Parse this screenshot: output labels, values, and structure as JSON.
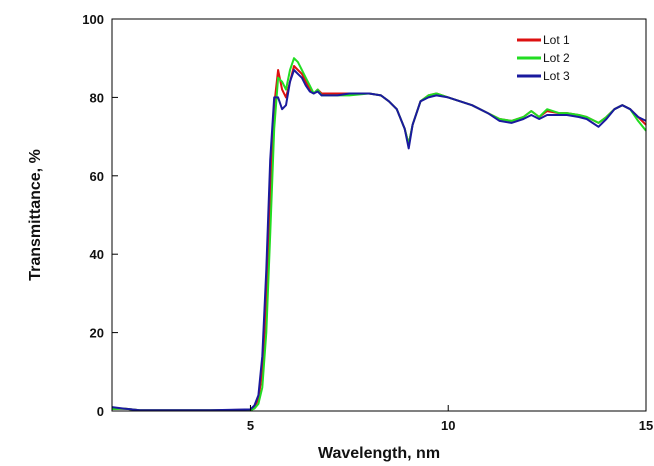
{
  "chart_data": {
    "type": "line",
    "title": "",
    "xlabel": "Wavelength, nm",
    "ylabel": "Transmittance, %",
    "xlim": [
      1.5,
      15
    ],
    "ylim": [
      0,
      100
    ],
    "x_ticks": [
      5,
      10,
      15
    ],
    "x_tick_labels": [
      "5",
      "10",
      "15"
    ],
    "y_ticks": [
      0,
      20,
      40,
      60,
      80,
      100
    ],
    "y_tick_labels": [
      "0",
      "20",
      "40",
      "60",
      "80",
      "100"
    ],
    "grid": false,
    "legend_position": "top-right",
    "series": [
      {
        "name": "Lot 1",
        "color": "#dd1111",
        "x": [
          1.5,
          1.8,
          2.2,
          3,
          4,
          5,
          5.1,
          5.2,
          5.3,
          5.4,
          5.5,
          5.6,
          5.7,
          5.8,
          5.9,
          6.0,
          6.1,
          6.2,
          6.3,
          6.4,
          6.5,
          6.6,
          6.7,
          6.8,
          7.0,
          7.2,
          7.5,
          8.0,
          8.3,
          8.5,
          8.7,
          8.9,
          9.0,
          9.1,
          9.3,
          9.5,
          9.7,
          10.0,
          10.3,
          10.6,
          11.0,
          11.3,
          11.6,
          11.9,
          12.1,
          12.3,
          12.5,
          12.8,
          13.0,
          13.3,
          13.5,
          13.8,
          14.0,
          14.2,
          14.4,
          14.6,
          14.8,
          15.0
        ],
        "y": [
          0.5,
          0.6,
          0.2,
          0.2,
          0.2,
          0.3,
          1.0,
          3.0,
          10,
          28,
          55,
          78,
          87,
          82,
          80,
          84,
          88,
          87,
          86,
          84,
          82,
          81,
          82,
          81,
          81,
          81,
          81,
          81,
          80.5,
          79,
          77,
          72,
          68,
          73,
          79,
          80.5,
          81,
          80,
          79,
          78,
          76,
          74.5,
          74,
          75,
          76.5,
          75,
          76.5,
          76,
          76,
          75.5,
          75,
          73.5,
          75,
          77,
          78,
          77,
          75,
          73
        ]
      },
      {
        "name": "Lot 2",
        "color": "#22dd22",
        "x": [
          1.5,
          1.8,
          2.2,
          3,
          4,
          5,
          5.1,
          5.2,
          5.3,
          5.4,
          5.5,
          5.6,
          5.7,
          5.8,
          5.9,
          6.0,
          6.1,
          6.2,
          6.3,
          6.4,
          6.5,
          6.6,
          6.7,
          6.8,
          7.0,
          7.2,
          7.5,
          8.0,
          8.3,
          8.5,
          8.7,
          8.9,
          9.0,
          9.1,
          9.3,
          9.5,
          9.7,
          10.0,
          10.3,
          10.6,
          11.0,
          11.3,
          11.6,
          11.9,
          12.1,
          12.3,
          12.5,
          12.8,
          13.0,
          13.3,
          13.5,
          13.8,
          14.0,
          14.2,
          14.4,
          14.6,
          14.8,
          15.0
        ],
        "y": [
          0.5,
          0.6,
          0.2,
          0.2,
          0.2,
          0.2,
          0.6,
          1.8,
          6,
          20,
          45,
          72,
          85,
          84,
          82,
          87,
          90,
          89,
          87,
          85,
          83,
          81,
          82,
          80.5,
          80.5,
          80.5,
          80.5,
          81,
          80.5,
          79,
          77,
          72,
          68,
          73,
          79,
          80.5,
          81,
          80,
          79,
          78,
          76,
          74.5,
          74,
          75,
          76.5,
          75,
          77,
          76,
          76,
          75.5,
          75,
          73.5,
          75,
          77,
          78,
          77,
          74,
          71.5
        ]
      },
      {
        "name": "Lot 3",
        "color": "#1a1a9e",
        "x": [
          1.5,
          1.8,
          2.2,
          3,
          4,
          5,
          5.1,
          5.2,
          5.3,
          5.4,
          5.5,
          5.6,
          5.7,
          5.8,
          5.9,
          6.0,
          6.1,
          6.2,
          6.3,
          6.4,
          6.5,
          6.6,
          6.7,
          6.8,
          7.0,
          7.2,
          7.5,
          8.0,
          8.3,
          8.5,
          8.7,
          8.9,
          9.0,
          9.1,
          9.3,
          9.5,
          9.7,
          10.0,
          10.3,
          10.6,
          11.0,
          11.3,
          11.6,
          11.9,
          12.1,
          12.3,
          12.5,
          12.8,
          13.0,
          13.3,
          13.5,
          13.8,
          14.0,
          14.2,
          14.4,
          14.6,
          14.8,
          15.0
        ],
        "y": [
          1.0,
          0.6,
          0.2,
          0.2,
          0.2,
          0.4,
          1.4,
          4,
          14,
          36,
          64,
          80,
          80,
          77,
          78,
          84,
          87,
          86,
          85,
          83,
          81.5,
          81,
          81.5,
          80.5,
          80.5,
          80.5,
          81,
          81,
          80.5,
          79,
          77,
          72,
          67,
          73,
          79,
          80,
          80.5,
          80,
          79,
          78,
          76,
          74,
          73.5,
          74.5,
          75.5,
          74.5,
          75.5,
          75.5,
          75.5,
          75,
          74.5,
          72.5,
          74.5,
          77,
          78,
          77,
          75,
          74
        ]
      }
    ]
  }
}
